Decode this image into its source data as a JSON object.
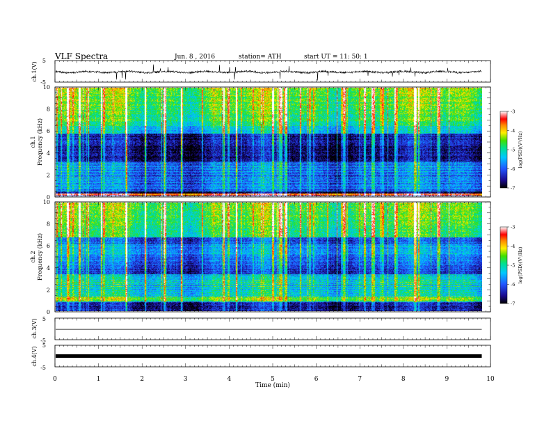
{
  "header": {
    "title": "VLF  Spectra",
    "date": "Jun. 8  , 2016",
    "station": "station= ATH",
    "start": "start  UT  =   11: 50: 1"
  },
  "chart_data": [
    {
      "type": "line",
      "ylabel": "ch.1(V)",
      "ylim": [
        -5,
        5
      ],
      "yticks": [
        "5",
        "-5"
      ],
      "note": "dense noisy waveform near -0.3 V with impulsive spikes"
    },
    {
      "type": "heatmap",
      "channel_label": "ch.1",
      "ylabel": "Frequency  (kHz)",
      "ylim": [
        0,
        10
      ],
      "yticks": [
        "0",
        "2",
        "4",
        "6",
        "8",
        "10"
      ],
      "colorbar": {
        "label": "log(PSD)(V²/Hz)",
        "range": [
          -7,
          -3
        ],
        "ticks": [
          "-3",
          "-4",
          "-5",
          "-6",
          "-7"
        ]
      }
    },
    {
      "type": "heatmap",
      "channel_label": "ch.2",
      "ylabel": "Frequency  (kHz)",
      "ylim": [
        0,
        10
      ],
      "yticks": [
        "0",
        "2",
        "4",
        "6",
        "8",
        "10"
      ],
      "colorbar": {
        "label": "log(PSD)(V²/Hz)",
        "range": [
          -7,
          -3
        ],
        "ticks": [
          "-3",
          "-4",
          "-5",
          "-6",
          "-7"
        ]
      }
    },
    {
      "type": "line",
      "ylabel": "ch.3(V)",
      "ylim": [
        -5,
        5
      ],
      "yticks": [
        "5",
        "-5"
      ],
      "note": "nearly flat trace near -0.2 V"
    },
    {
      "type": "line",
      "ylabel": "ch.4(V)",
      "ylim": [
        -5,
        5
      ],
      "yticks": [
        "5",
        "-5"
      ],
      "note": "thick flat trace near 0 V"
    }
  ],
  "x_axis": {
    "label": "Time  (min)",
    "range": [
      0,
      10
    ],
    "ticks": [
      "0",
      "1",
      "2",
      "3",
      "4",
      "5",
      "6",
      "7",
      "8",
      "9",
      "10"
    ],
    "data_end": 9.8
  },
  "colors": {
    "spectrogram_scale": [
      "#000000",
      "#1a0a8c",
      "#2255ff",
      "#00c8ff",
      "#00e090",
      "#40e000",
      "#ffee00",
      "#ff8800",
      "#ff0000",
      "#ffffff"
    ]
  }
}
